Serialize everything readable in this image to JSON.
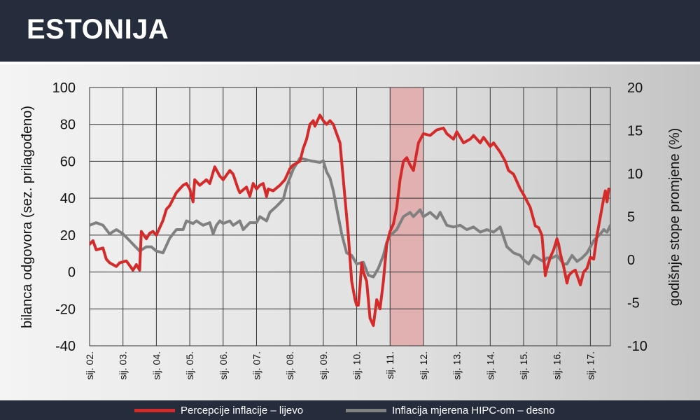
{
  "header": {
    "title": "ESTONIJA"
  },
  "colors": {
    "red": "#d42a2a",
    "grey": "#808080",
    "shade": "#e2a8a8"
  },
  "legend": [
    {
      "label": "Percepcije inflacije – lijevo",
      "color": "#d42a2a"
    },
    {
      "label": "Inflacija mjerena HIPC-om – desno",
      "color": "#808080"
    }
  ],
  "chart_data": {
    "type": "line",
    "xlabel": "",
    "ylabel": "bilanca odgovora (sez. prilagođeno)",
    "y2label": "godišnje stope promjene (%)",
    "ylim": [
      -40,
      100
    ],
    "y2lim": [
      -10,
      20
    ],
    "yticks": [
      100,
      80,
      60,
      40,
      20,
      0,
      -20,
      -40
    ],
    "y2ticks": [
      20,
      15,
      10,
      5,
      0,
      -5,
      -10
    ],
    "categories": [
      "sij. 02.",
      "sij. 03.",
      "sij. 04.",
      "sij. 05.",
      "sij. 06.",
      "sij. 07.",
      "sij. 08.",
      "sij. 09.",
      "sij. 10.",
      "sij. 11.",
      "sij. 12.",
      "sij. 13.",
      "sij. 14.",
      "sij. 15.",
      "sij. 16.",
      "sij. 17."
    ],
    "x_start": 2002.0,
    "x_end": 2017.6,
    "shaded_region": [
      2011.0,
      2012.0
    ],
    "grid": true,
    "series": [
      {
        "name": "Percepcije inflacije – lijevo",
        "axis": "left",
        "color": "#d42a2a",
        "points": [
          [
            2002.0,
            15
          ],
          [
            2002.1,
            17
          ],
          [
            2002.2,
            12
          ],
          [
            2002.4,
            13
          ],
          [
            2002.5,
            7
          ],
          [
            2002.6,
            5
          ],
          [
            2002.8,
            3
          ],
          [
            2002.9,
            5
          ],
          [
            2003.1,
            6
          ],
          [
            2003.3,
            1
          ],
          [
            2003.4,
            4
          ],
          [
            2003.5,
            1
          ],
          [
            2003.55,
            22
          ],
          [
            2003.7,
            18
          ],
          [
            2003.8,
            21
          ],
          [
            2003.9,
            22
          ],
          [
            2004.0,
            20
          ],
          [
            2004.2,
            28
          ],
          [
            2004.3,
            34
          ],
          [
            2004.4,
            36
          ],
          [
            2004.6,
            43
          ],
          [
            2004.8,
            47
          ],
          [
            2004.9,
            48
          ],
          [
            2005.0,
            45
          ],
          [
            2005.1,
            38
          ],
          [
            2005.15,
            50
          ],
          [
            2005.3,
            47
          ],
          [
            2005.5,
            50
          ],
          [
            2005.6,
            48
          ],
          [
            2005.75,
            57
          ],
          [
            2005.9,
            52
          ],
          [
            2006.0,
            50
          ],
          [
            2006.2,
            55
          ],
          [
            2006.3,
            53
          ],
          [
            2006.45,
            45
          ],
          [
            2006.5,
            43
          ],
          [
            2006.7,
            46
          ],
          [
            2006.8,
            41
          ],
          [
            2006.9,
            48
          ],
          [
            2007.0,
            45
          ],
          [
            2007.1,
            47
          ],
          [
            2007.2,
            48
          ],
          [
            2007.3,
            41
          ],
          [
            2007.35,
            45
          ],
          [
            2007.5,
            44
          ],
          [
            2007.7,
            47
          ],
          [
            2007.85,
            50
          ],
          [
            2008.0,
            56
          ],
          [
            2008.1,
            58
          ],
          [
            2008.3,
            60
          ],
          [
            2008.4,
            67
          ],
          [
            2008.5,
            72
          ],
          [
            2008.6,
            80
          ],
          [
            2008.7,
            82
          ],
          [
            2008.75,
            79
          ],
          [
            2008.85,
            83
          ],
          [
            2008.9,
            85
          ],
          [
            2009.0,
            82
          ],
          [
            2009.1,
            80
          ],
          [
            2009.2,
            82
          ],
          [
            2009.3,
            80
          ],
          [
            2009.4,
            75
          ],
          [
            2009.5,
            70
          ],
          [
            2009.6,
            50
          ],
          [
            2009.75,
            20
          ],
          [
            2009.85,
            -5
          ],
          [
            2009.95,
            -15
          ],
          [
            2010.0,
            -18
          ],
          [
            2010.05,
            -18
          ],
          [
            2010.1,
            -8
          ],
          [
            2010.15,
            5
          ],
          [
            2010.2,
            0
          ],
          [
            2010.3,
            -5
          ],
          [
            2010.4,
            -25
          ],
          [
            2010.5,
            -29
          ],
          [
            2010.6,
            -15
          ],
          [
            2010.7,
            -20
          ],
          [
            2010.8,
            -5
          ],
          [
            2010.9,
            15
          ],
          [
            2011.0,
            22
          ],
          [
            2011.1,
            26
          ],
          [
            2011.2,
            35
          ],
          [
            2011.3,
            50
          ],
          [
            2011.4,
            60
          ],
          [
            2011.5,
            62
          ],
          [
            2011.6,
            58
          ],
          [
            2011.7,
            55
          ],
          [
            2011.85,
            70
          ],
          [
            2012.0,
            75
          ],
          [
            2012.2,
            74
          ],
          [
            2012.4,
            77
          ],
          [
            2012.6,
            78
          ],
          [
            2012.7,
            75
          ],
          [
            2012.9,
            72
          ],
          [
            2013.0,
            76
          ],
          [
            2013.2,
            70
          ],
          [
            2013.4,
            72
          ],
          [
            2013.5,
            74
          ],
          [
            2013.7,
            70
          ],
          [
            2013.8,
            73
          ],
          [
            2014.0,
            68
          ],
          [
            2014.1,
            70
          ],
          [
            2014.3,
            65
          ],
          [
            2014.45,
            60
          ],
          [
            2014.55,
            55
          ],
          [
            2014.7,
            53
          ],
          [
            2014.9,
            45
          ],
          [
            2015.0,
            42
          ],
          [
            2015.2,
            35
          ],
          [
            2015.35,
            25
          ],
          [
            2015.45,
            24
          ],
          [
            2015.55,
            20
          ],
          [
            2015.65,
            -2
          ],
          [
            2015.7,
            2
          ],
          [
            2015.8,
            8
          ],
          [
            2015.9,
            12
          ],
          [
            2016.0,
            18
          ],
          [
            2016.05,
            15
          ],
          [
            2016.1,
            10
          ],
          [
            2016.2,
            3
          ],
          [
            2016.3,
            -6
          ],
          [
            2016.35,
            -2
          ],
          [
            2016.45,
            0
          ],
          [
            2016.55,
            1
          ],
          [
            2016.7,
            -7
          ],
          [
            2016.8,
            0
          ],
          [
            2016.9,
            2
          ],
          [
            2017.0,
            8
          ],
          [
            2017.1,
            7
          ],
          [
            2017.2,
            20
          ],
          [
            2017.3,
            30
          ],
          [
            2017.4,
            40
          ],
          [
            2017.45,
            44
          ],
          [
            2017.5,
            38
          ],
          [
            2017.55,
            45
          ]
        ]
      },
      {
        "name": "Inflacija mjerena HIPC-om – desno",
        "axis": "right",
        "color": "#808080",
        "points": [
          [
            2002.0,
            4
          ],
          [
            2002.2,
            4.3
          ],
          [
            2002.4,
            4
          ],
          [
            2002.6,
            3
          ],
          [
            2002.8,
            3.5
          ],
          [
            2003.0,
            3
          ],
          [
            2003.2,
            2.2
          ],
          [
            2003.5,
            1
          ],
          [
            2003.7,
            1.5
          ],
          [
            2003.85,
            1.5
          ],
          [
            2004.0,
            1
          ],
          [
            2004.2,
            0.8
          ],
          [
            2004.4,
            2.5
          ],
          [
            2004.5,
            3
          ],
          [
            2004.6,
            3.5
          ],
          [
            2004.8,
            3.5
          ],
          [
            2004.9,
            4.5
          ],
          [
            2005.1,
            4.2
          ],
          [
            2005.2,
            4.5
          ],
          [
            2005.4,
            4
          ],
          [
            2005.6,
            4.3
          ],
          [
            2005.7,
            3
          ],
          [
            2005.8,
            4
          ],
          [
            2005.9,
            4.5
          ],
          [
            2006.0,
            4.2
          ],
          [
            2006.2,
            4.5
          ],
          [
            2006.3,
            4
          ],
          [
            2006.5,
            4.5
          ],
          [
            2006.6,
            3.5
          ],
          [
            2006.8,
            4.3
          ],
          [
            2007.0,
            4.3
          ],
          [
            2007.1,
            5
          ],
          [
            2007.3,
            4.5
          ],
          [
            2007.4,
            5.5
          ],
          [
            2007.6,
            6.2
          ],
          [
            2007.8,
            7
          ],
          [
            2007.9,
            8.5
          ],
          [
            2008.0,
            9.5
          ],
          [
            2008.1,
            10.5
          ],
          [
            2008.3,
            11.8
          ],
          [
            2008.5,
            11.6
          ],
          [
            2008.6,
            11.5
          ],
          [
            2008.9,
            11.3
          ],
          [
            2009.0,
            11.5
          ],
          [
            2009.1,
            10.2
          ],
          [
            2009.2,
            9.5
          ],
          [
            2009.3,
            8
          ],
          [
            2009.4,
            6
          ],
          [
            2009.55,
            3
          ],
          [
            2009.7,
            0.8
          ],
          [
            2009.85,
            0.5
          ],
          [
            2010.0,
            -0.5
          ],
          [
            2010.2,
            -0.3
          ],
          [
            2010.35,
            -1.8
          ],
          [
            2010.5,
            -2
          ],
          [
            2010.65,
            -1
          ],
          [
            2010.8,
            0.5
          ],
          [
            2010.9,
            2
          ],
          [
            2011.0,
            2.8
          ],
          [
            2011.2,
            3.5
          ],
          [
            2011.4,
            5
          ],
          [
            2011.6,
            5.5
          ],
          [
            2011.7,
            5
          ],
          [
            2011.9,
            5.8
          ],
          [
            2012.0,
            5
          ],
          [
            2012.2,
            5.5
          ],
          [
            2012.4,
            4.8
          ],
          [
            2012.5,
            5.5
          ],
          [
            2012.7,
            4
          ],
          [
            2012.9,
            3.8
          ],
          [
            2013.1,
            4
          ],
          [
            2013.3,
            3.5
          ],
          [
            2013.5,
            3.8
          ],
          [
            2013.7,
            3.2
          ],
          [
            2013.9,
            3.5
          ],
          [
            2014.1,
            3.2
          ],
          [
            2014.3,
            3.8
          ],
          [
            2014.5,
            1.5
          ],
          [
            2014.7,
            0.8
          ],
          [
            2014.9,
            0.5
          ],
          [
            2015.0,
            0
          ],
          [
            2015.15,
            -0.5
          ],
          [
            2015.3,
            0.5
          ],
          [
            2015.5,
            0
          ],
          [
            2015.6,
            -0.2
          ],
          [
            2015.7,
            0.2
          ],
          [
            2015.85,
            0.2
          ],
          [
            2016.0,
            0.5
          ],
          [
            2016.1,
            0
          ],
          [
            2016.2,
            -0.5
          ],
          [
            2016.3,
            -0.5
          ],
          [
            2016.45,
            0.5
          ],
          [
            2016.6,
            -0.2
          ],
          [
            2016.75,
            0.2
          ],
          [
            2016.9,
            0.8
          ],
          [
            2017.0,
            1.5
          ],
          [
            2017.1,
            2.2
          ],
          [
            2017.3,
            3
          ],
          [
            2017.4,
            3.5
          ],
          [
            2017.5,
            3.2
          ],
          [
            2017.6,
            4
          ]
        ]
      }
    ]
  }
}
